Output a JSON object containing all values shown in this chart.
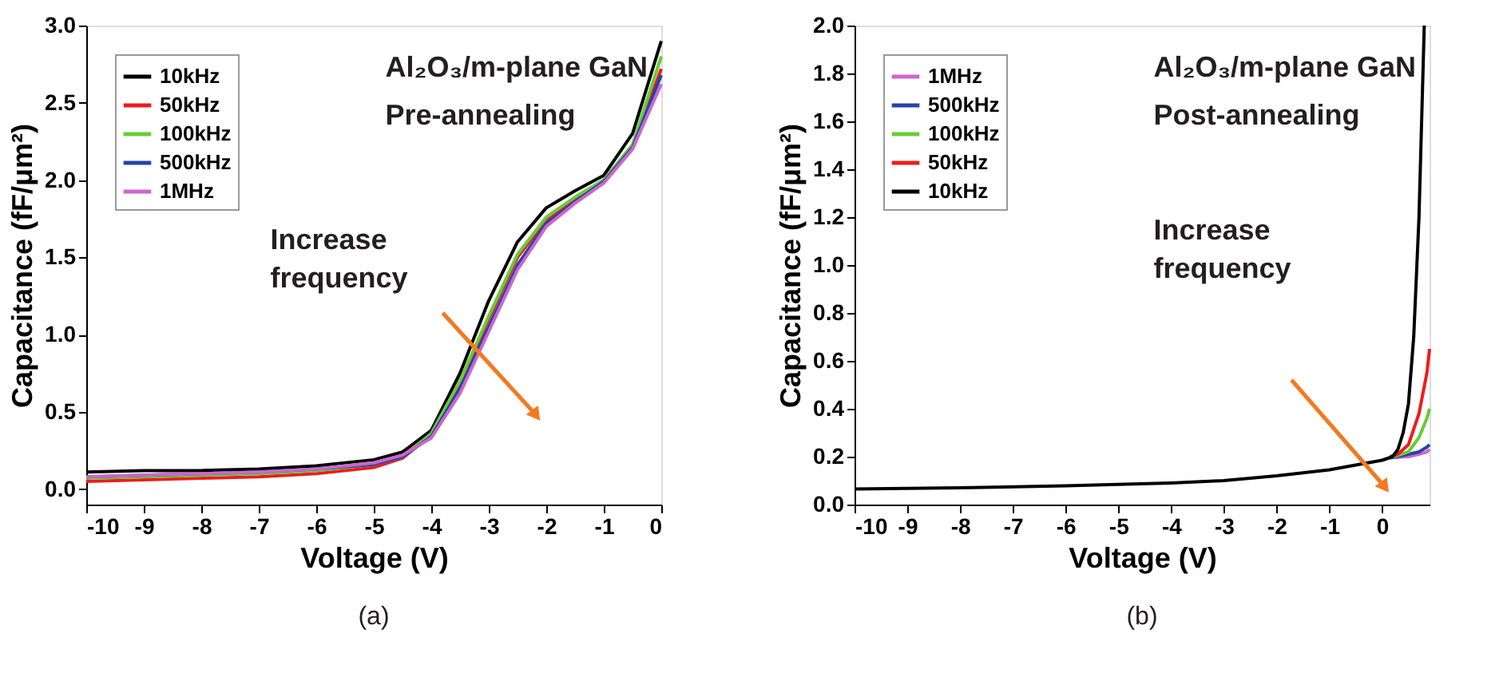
{
  "chart_data": [
    {
      "type": "line",
      "xlabel": "Voltage (V)",
      "ylabel": "Capacitance (fF/μm²)",
      "annotations": [
        "Al₂O₃/m-plane GaN",
        "Pre-annealing",
        "Increase frequency",
        "(a)"
      ],
      "x": [
        -10,
        -9,
        -8,
        -7,
        -6,
        -5,
        -4.5,
        -4,
        -3.5,
        -3,
        -2.5,
        -2,
        -1.5,
        -1,
        -0.5,
        0
      ],
      "series": [
        {
          "name": "10kHz",
          "color": "#000000",
          "values": [
            0.11,
            0.12,
            0.12,
            0.13,
            0.15,
            0.19,
            0.24,
            0.38,
            0.75,
            1.22,
            1.6,
            1.82,
            1.93,
            2.03,
            2.3,
            2.9
          ]
        },
        {
          "name": "50kHz",
          "color": "#ee1c1c",
          "values": [
            0.05,
            0.06,
            0.07,
            0.08,
            0.1,
            0.14,
            0.2,
            0.35,
            0.68,
            1.1,
            1.5,
            1.74,
            1.88,
            2.0,
            2.22,
            2.72
          ]
        },
        {
          "name": "100kHz",
          "color": "#66cc33",
          "values": [
            0.07,
            0.08,
            0.09,
            0.1,
            0.12,
            0.16,
            0.21,
            0.36,
            0.7,
            1.12,
            1.52,
            1.76,
            1.89,
            2.0,
            2.23,
            2.8
          ]
        },
        {
          "name": "500kHz",
          "color": "#2244aa",
          "values": [
            0.08,
            0.09,
            0.1,
            0.11,
            0.13,
            0.16,
            0.21,
            0.34,
            0.65,
            1.05,
            1.45,
            1.72,
            1.86,
            1.99,
            2.21,
            2.68
          ]
        },
        {
          "name": "1MHz",
          "color": "#cc66cc",
          "values": [
            0.08,
            0.09,
            0.1,
            0.11,
            0.13,
            0.17,
            0.22,
            0.33,
            0.62,
            1.02,
            1.42,
            1.7,
            1.85,
            1.98,
            2.2,
            2.62
          ]
        }
      ],
      "xlim": [
        -10,
        0
      ],
      "xticks": [
        -10,
        -9,
        -8,
        -7,
        -6,
        -5,
        -4,
        -3,
        -2,
        -1,
        0
      ],
      "ylim": [
        -0.1,
        3.0
      ],
      "yticks": [
        {
          "value": 0,
          "label": "0.0"
        },
        0.5,
        {
          "value": 1,
          "label": "1.0"
        },
        1.5,
        {
          "value": 2,
          "label": "2.0"
        },
        2.5,
        {
          "value": 3,
          "label": "3.0"
        }
      ],
      "legend": "top left",
      "grid": false,
      "marker": "none",
      "line_style": "solid"
    },
    {
      "type": "line",
      "xlabel": "Voltage (V)",
      "ylabel": "Capacitance (fF/μm²)",
      "annotations": [
        "Al₂O₃/m-plane GaN",
        "Post-annealing",
        "Increase frequency",
        "(b)"
      ],
      "series": [
        {
          "name": "1MHz",
          "color": "#cc66cc",
          "x": [
            0.15,
            0.5,
            0.7,
            0.85,
            0.9
          ],
          "values": [
            0.195,
            0.2,
            0.21,
            0.22,
            0.23
          ]
        },
        {
          "name": "500kHz",
          "color": "#2244aa",
          "x": [
            0.15,
            0.5,
            0.7,
            0.85,
            0.9
          ],
          "values": [
            0.195,
            0.21,
            0.22,
            0.24,
            0.25
          ]
        },
        {
          "name": "100kHz",
          "color": "#66cc33",
          "x": [
            0.15,
            0.5,
            0.7,
            0.85,
            0.9
          ],
          "values": [
            0.195,
            0.22,
            0.28,
            0.36,
            0.4
          ]
        },
        {
          "name": "50kHz",
          "color": "#ee1c1c",
          "x": [
            0.15,
            0.3,
            0.5,
            0.7,
            0.85,
            0.9
          ],
          "values": [
            0.2,
            0.21,
            0.25,
            0.38,
            0.55,
            0.65
          ]
        },
        {
          "name": "10kHz",
          "color": "#000000",
          "x": [
            -10,
            -8,
            -6,
            -4,
            -3,
            -2,
            -1,
            -0.5,
            0,
            0.2,
            0.3,
            0.4,
            0.5,
            0.6,
            0.7,
            0.8
          ],
          "values": [
            0.065,
            0.07,
            0.078,
            0.09,
            0.1,
            0.12,
            0.145,
            0.165,
            0.185,
            0.2,
            0.23,
            0.3,
            0.42,
            0.7,
            1.2,
            2.0
          ]
        }
      ],
      "xlim": [
        -10,
        0.9
      ],
      "xticks": [
        -10,
        -9,
        -8,
        -7,
        -6,
        -5,
        -4,
        -3,
        -2,
        -1,
        0
      ],
      "ylim": [
        0,
        2.0
      ],
      "yticks": [
        {
          "value": 0,
          "label": "0.0"
        },
        0.2,
        0.4,
        0.6,
        0.8,
        {
          "value": 1,
          "label": "1.0"
        },
        1.2,
        1.4,
        1.6,
        1.8,
        {
          "value": 2,
          "label": "2.0"
        }
      ],
      "legend": "top left",
      "grid": false,
      "marker": "none",
      "line_style": "solid"
    }
  ]
}
